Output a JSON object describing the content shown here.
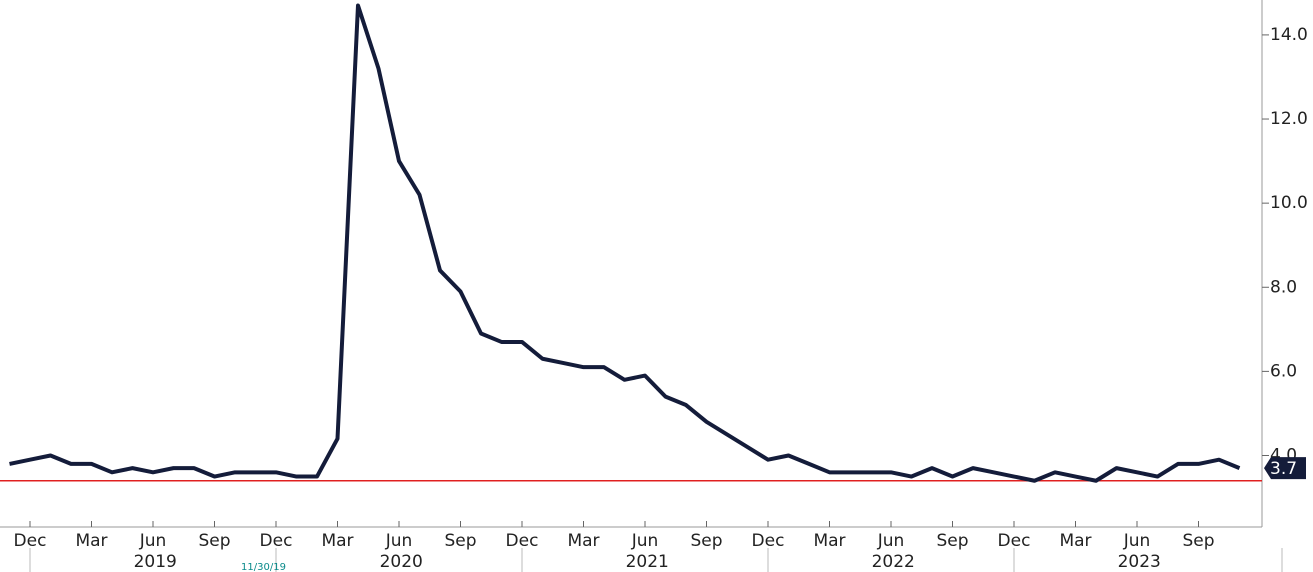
{
  "chart_data": {
    "type": "line",
    "categories": [
      null,
      "Dec",
      null,
      null,
      "Mar",
      null,
      null,
      "Jun",
      null,
      null,
      "Sep",
      null,
      null,
      "Dec",
      null,
      null,
      "Mar",
      null,
      null,
      "Jun",
      null,
      null,
      "Sep",
      null,
      null,
      "Dec",
      null,
      null,
      "Mar",
      null,
      null,
      "Jun",
      null,
      null,
      "Sep",
      null,
      null,
      "Dec",
      null,
      null,
      "Mar",
      null,
      null,
      "Jun",
      null,
      null,
      "Sep",
      null,
      null,
      "Dec",
      null,
      null,
      "Mar",
      null,
      null,
      "Jun",
      null,
      null,
      "Sep",
      null,
      null
    ],
    "x_groups": [
      "2019",
      "2020",
      "2021",
      "2022",
      "2023"
    ],
    "values": [
      3.8,
      3.9,
      4.0,
      3.8,
      3.8,
      3.6,
      3.7,
      3.6,
      3.7,
      3.7,
      3.5,
      3.6,
      3.6,
      3.6,
      3.5,
      3.5,
      4.4,
      14.7,
      13.2,
      11.0,
      10.2,
      8.4,
      7.9,
      6.9,
      6.7,
      6.7,
      6.3,
      6.2,
      6.1,
      6.1,
      5.8,
      5.9,
      5.4,
      5.2,
      4.8,
      4.5,
      4.2,
      3.9,
      4.0,
      3.8,
      3.6,
      3.6,
      3.6,
      3.6,
      3.5,
      3.7,
      3.5,
      3.7,
      3.6,
      3.5,
      3.4,
      3.6,
      3.5,
      3.4,
      3.7,
      3.6,
      3.5,
      3.8,
      3.8,
      3.9,
      3.7
    ],
    "color": "#141c3a",
    "reference_line": {
      "value": 3.4,
      "color": "#e02020"
    },
    "annotation": "11/30/19",
    "ylim": [
      2.3,
      14.83
    ],
    "yticks": [
      {
        "value": 4,
        "label": "4.0"
      },
      {
        "value": 6,
        "label": "6.0"
      },
      {
        "value": 8,
        "label": "8.0"
      },
      {
        "value": 10,
        "label": "10.0"
      },
      {
        "value": 12,
        "label": "12.0"
      },
      {
        "value": 14,
        "label": "14.0"
      }
    ]
  }
}
